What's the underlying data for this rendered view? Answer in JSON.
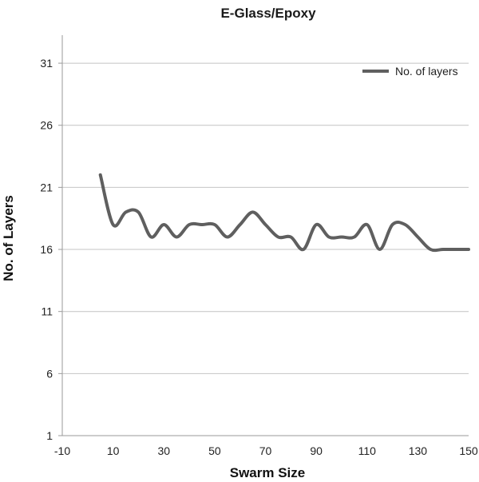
{
  "chart_data": {
    "type": "line",
    "title": "E-Glass/Epoxy",
    "xlabel": "Swarm Size",
    "ylabel": "No. of Layers",
    "xlim": [
      -10,
      150
    ],
    "ylim": [
      1,
      33
    ],
    "x_ticks": [
      -10,
      10,
      30,
      50,
      70,
      90,
      110,
      130,
      150
    ],
    "y_ticks": [
      1,
      6,
      11,
      16,
      21,
      26,
      31
    ],
    "grid": "horizontal",
    "legend_position": "top-right",
    "series": [
      {
        "name": "No. of layers",
        "color": "#5f5f5f",
        "x": [
          5,
          10,
          15,
          20,
          25,
          30,
          35,
          40,
          45,
          50,
          55,
          60,
          65,
          70,
          75,
          80,
          85,
          90,
          95,
          100,
          105,
          110,
          115,
          120,
          125,
          130,
          135,
          140,
          145,
          150
        ],
        "values": [
          22,
          18,
          19,
          19,
          17,
          18,
          17,
          18,
          18,
          18,
          17,
          18,
          19,
          18,
          17,
          17,
          16,
          18,
          17,
          17,
          17,
          18,
          16,
          18,
          18,
          17,
          16,
          16,
          16,
          16
        ]
      }
    ]
  }
}
